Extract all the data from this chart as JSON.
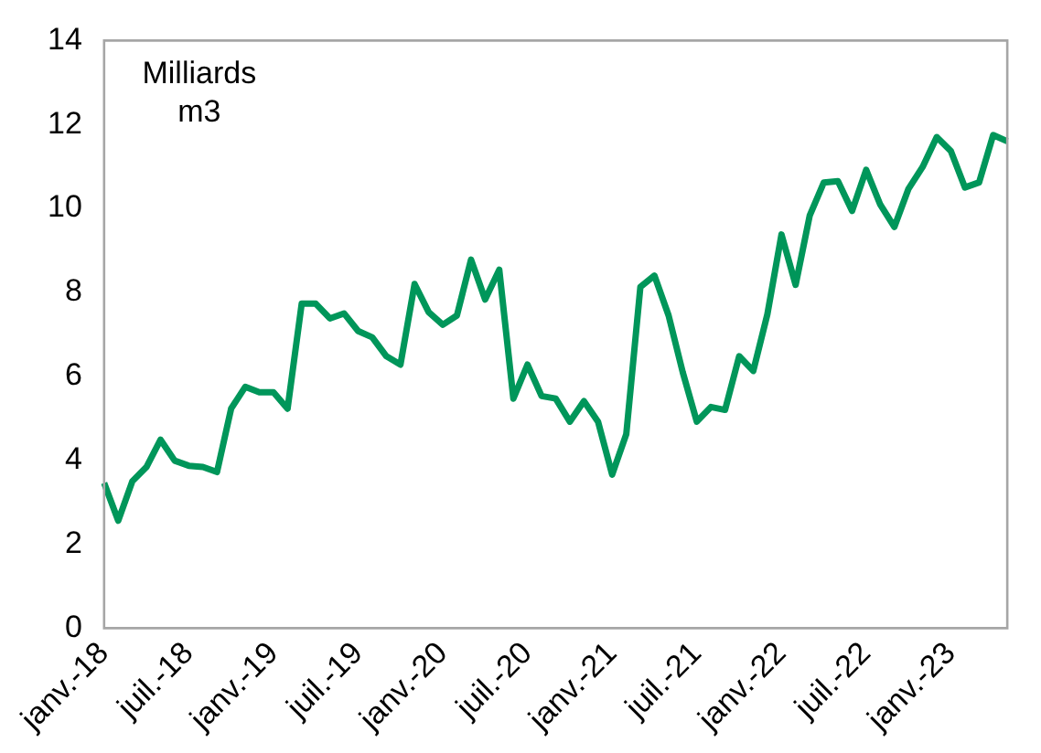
{
  "chart_data": {
    "type": "line",
    "ylabel": "Milliards m3",
    "categories": [
      "janv.-18",
      null,
      null,
      null,
      null,
      null,
      "juil.-18",
      null,
      null,
      null,
      null,
      null,
      "janv.-19",
      null,
      null,
      null,
      null,
      null,
      "juil.-19",
      null,
      null,
      null,
      null,
      null,
      "janv.-20",
      null,
      null,
      null,
      null,
      null,
      "juil.-20",
      null,
      null,
      null,
      null,
      null,
      "janv.-21",
      null,
      null,
      null,
      null,
      null,
      "juil.-21",
      null,
      null,
      null,
      null,
      null,
      "janv.-22",
      null,
      null,
      null,
      null,
      null,
      "juil.-22",
      null,
      null,
      null,
      null,
      null,
      "janv.-23",
      null,
      null,
      null,
      null
    ],
    "series": [
      {
        "color": "#00965a",
        "values": [
          3.46,
          2.56,
          3.5,
          3.84,
          4.49,
          3.99,
          3.87,
          3.84,
          3.72,
          5.23,
          5.75,
          5.62,
          5.62,
          5.23,
          7.73,
          7.73,
          7.38,
          7.5,
          7.08,
          6.93,
          6.48,
          6.28,
          8.2,
          7.53,
          7.23,
          7.45,
          8.78,
          7.83,
          8.54,
          5.47,
          6.28,
          5.53,
          5.47,
          4.92,
          5.41,
          4.92,
          3.66,
          4.62,
          8.13,
          8.4,
          7.45,
          6.1,
          4.92,
          5.27,
          5.2,
          6.48,
          6.13,
          7.48,
          9.38,
          8.18,
          9.83,
          10.62,
          10.65,
          9.94,
          10.92,
          10.09,
          9.56,
          10.47,
          10.99,
          11.7,
          11.37,
          10.5,
          10.62,
          11.75,
          11.6
        ]
      }
    ],
    "ylim": [
      0,
      14
    ],
    "yticks": [
      0,
      2,
      4,
      6,
      8,
      10,
      12,
      14
    ],
    "grid": false,
    "legend": false,
    "marker": "none",
    "line_style": "solid"
  }
}
